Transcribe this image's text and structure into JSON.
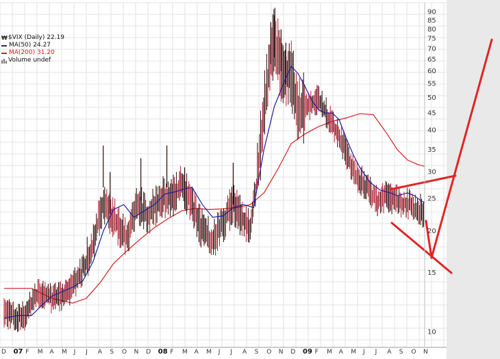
{
  "chart_data": {
    "type": "line",
    "title": "$VIX (Daily) 22.19",
    "legend": [
      {
        "name": "MA(50) 24.27",
        "color": "#1b1b9b"
      },
      {
        "name": "MA(200) 31.20",
        "color": "#d61b1b"
      },
      {
        "name": "Volume undef",
        "color": "#777777"
      }
    ],
    "x_ticks": [
      "D",
      "07",
      "F",
      "M",
      "A",
      "M",
      "J",
      "J",
      "A",
      "S",
      "O",
      "N",
      "D",
      "08",
      "F",
      "M",
      "A",
      "M",
      "J",
      "J",
      "A",
      "S",
      "O",
      "N",
      "D",
      "09",
      "F",
      "M",
      "A",
      "M",
      "J",
      "J",
      "A",
      "S",
      "O",
      "N"
    ],
    "x_tick_bold": [
      false,
      true,
      false,
      false,
      false,
      false,
      false,
      false,
      false,
      false,
      false,
      false,
      false,
      true,
      false,
      false,
      false,
      false,
      false,
      false,
      false,
      false,
      false,
      false,
      false,
      true,
      false,
      false,
      false,
      false,
      false,
      false,
      false,
      false,
      false,
      false
    ],
    "y_ticks": [
      "10",
      "15",
      "20",
      "25",
      "30",
      "35",
      "40",
      "45",
      "50",
      "55",
      "60",
      "65",
      "70",
      "75",
      "80",
      "85",
      "90"
    ],
    "y_scale": "log",
    "ylim": [
      9,
      96
    ],
    "series": [
      {
        "name": "MA(50) 24.27",
        "color": "#1b1b9b",
        "values": [
          [
            0,
            11.0
          ],
          [
            20,
            11.2
          ],
          [
            40,
            11.2
          ],
          [
            55,
            12.0
          ],
          [
            70,
            12.8
          ],
          [
            85,
            13.2
          ],
          [
            100,
            13.6
          ],
          [
            115,
            14.2
          ],
          [
            130,
            16.2
          ],
          [
            145,
            20.0
          ],
          [
            160,
            23.2
          ],
          [
            175,
            24.0
          ],
          [
            190,
            22.0
          ],
          [
            205,
            23.0
          ],
          [
            220,
            24.0
          ],
          [
            235,
            25.8
          ],
          [
            250,
            26.2
          ],
          [
            265,
            26.8
          ],
          [
            275,
            27.0
          ],
          [
            290,
            24.0
          ],
          [
            305,
            22.0
          ],
          [
            320,
            22.2
          ],
          [
            335,
            23.5
          ],
          [
            350,
            24.0
          ],
          [
            365,
            23.5
          ],
          [
            380,
            35.0
          ],
          [
            395,
            47.0
          ],
          [
            410,
            56.0
          ],
          [
            420,
            62.0
          ],
          [
            430,
            59.0
          ],
          [
            440,
            54.0
          ],
          [
            450,
            49.0
          ],
          [
            460,
            46.0
          ],
          [
            470,
            45.0
          ],
          [
            480,
            45.0
          ],
          [
            490,
            43.0
          ],
          [
            500,
            38.0
          ],
          [
            510,
            34.0
          ],
          [
            520,
            31.0
          ],
          [
            535,
            28.0
          ],
          [
            550,
            26.5
          ],
          [
            565,
            26.0
          ],
          [
            575,
            25.5
          ],
          [
            590,
            26.0
          ],
          [
            600,
            25.5
          ],
          [
            610,
            24.6
          ],
          [
            615,
            24.3
          ]
        ]
      },
      {
        "name": "MA(200) 31.20",
        "color": "#d61b1b",
        "values": [
          [
            0,
            13.5
          ],
          [
            40,
            13.5
          ],
          [
            70,
            12.6
          ],
          [
            100,
            12.2
          ],
          [
            120,
            12.6
          ],
          [
            140,
            14.0
          ],
          [
            160,
            16.0
          ],
          [
            180,
            17.5
          ],
          [
            200,
            19.0
          ],
          [
            220,
            20.5
          ],
          [
            240,
            21.8
          ],
          [
            260,
            23.0
          ],
          [
            280,
            23.4
          ],
          [
            300,
            23.2
          ],
          [
            320,
            23.3
          ],
          [
            340,
            23.5
          ],
          [
            360,
            24.0
          ],
          [
            380,
            26.0
          ],
          [
            400,
            30.5
          ],
          [
            420,
            36.5
          ],
          [
            440,
            39.0
          ],
          [
            460,
            41.0
          ],
          [
            480,
            42.5
          ],
          [
            500,
            43.5
          ],
          [
            520,
            44.8
          ],
          [
            540,
            44.5
          ],
          [
            560,
            39.0
          ],
          [
            575,
            35.0
          ],
          [
            590,
            32.6
          ],
          [
            605,
            31.6
          ],
          [
            615,
            31.2
          ]
        ]
      }
    ],
    "annotations": [
      {
        "type": "line",
        "color": "#e02424",
        "from": [
          "Jul 2009",
          29.0
        ],
        "to": [
          "Nov 2009",
          33.0
        ]
      },
      {
        "type": "line",
        "color": "#e02424",
        "from": [
          "Aug 2009",
          23.0
        ],
        "to": [
          "Dec 2009",
          15.5
        ]
      },
      {
        "type": "line",
        "color": "#e02424",
        "from": [
          "Nov 2009",
          23.0
        ],
        "to": [
          "Nov 2009",
          17.7
        ]
      },
      {
        "type": "line",
        "color": "#e02424",
        "from": [
          "Nov 2009",
          17.7
        ],
        "to": [
          "Dec 2009",
          90.0
        ]
      }
    ],
    "grid": true
  },
  "colors": {
    "price": "#2a0a0a",
    "price_red": "#b51c2f",
    "grid": "#dddddd",
    "panel": "#e9e9e9"
  }
}
